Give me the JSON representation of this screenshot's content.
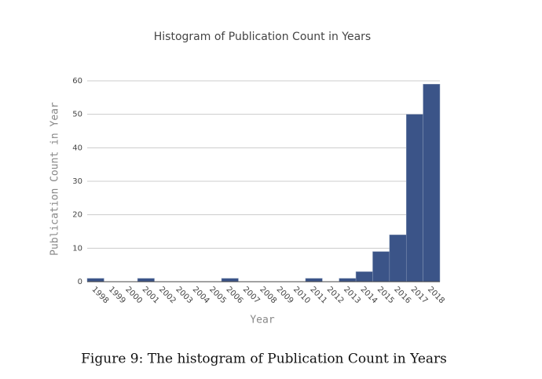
{
  "chart_data": {
    "type": "bar",
    "title": "Histogram of Publication Count in Years",
    "x_label": "Year",
    "y_label": "Publication Count in Year",
    "categories": [
      "1998",
      "1999",
      "2000",
      "2001",
      "2002",
      "2003",
      "2004",
      "2005",
      "2006",
      "2007",
      "2008",
      "2009",
      "2010",
      "2011",
      "2012",
      "2013",
      "2014",
      "2015",
      "2016",
      "2017",
      "2018"
    ],
    "values": [
      1,
      0,
      0,
      1,
      0,
      0,
      0,
      0,
      1,
      0,
      0,
      0,
      0,
      1,
      0,
      1,
      3,
      9,
      14,
      50,
      59
    ],
    "color": "#3b5488",
    "ylim": [
      0,
      60
    ],
    "yticks": [
      0,
      10,
      20,
      30,
      40,
      50,
      60
    ],
    "grid": true
  },
  "caption": "Figure 9: The histogram of Publication Count in Years"
}
